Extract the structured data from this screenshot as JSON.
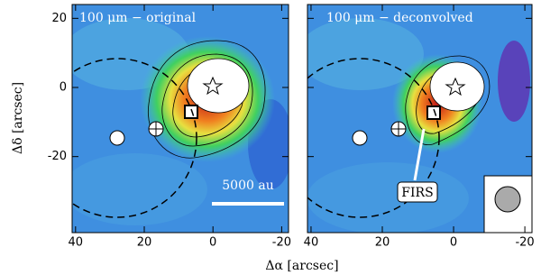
{
  "chart_data": [
    {
      "type": "image",
      "title": "100 μm − original",
      "xlabel": "Δα [arcsec]",
      "ylabel": "Δδ [arcsec]",
      "xlim": [
        41,
        -22
      ],
      "ylim": [
        -42,
        24
      ],
      "xticks": [
        40,
        20,
        0,
        -20
      ],
      "yticks": [
        20,
        0,
        -20
      ],
      "ytick_labels": true,
      "annotations": [
        "5000 au"
      ]
    },
    {
      "type": "image",
      "title": "100 μm − deconvolved",
      "xlim": [
        41,
        -22
      ],
      "ylim": [
        -42,
        24
      ],
      "xticks": [
        40,
        20,
        0,
        -20
      ],
      "yticks": [
        20,
        0,
        -20
      ],
      "ytick_labels": false,
      "annotations": [
        "FIRS"
      ]
    }
  ]
}
